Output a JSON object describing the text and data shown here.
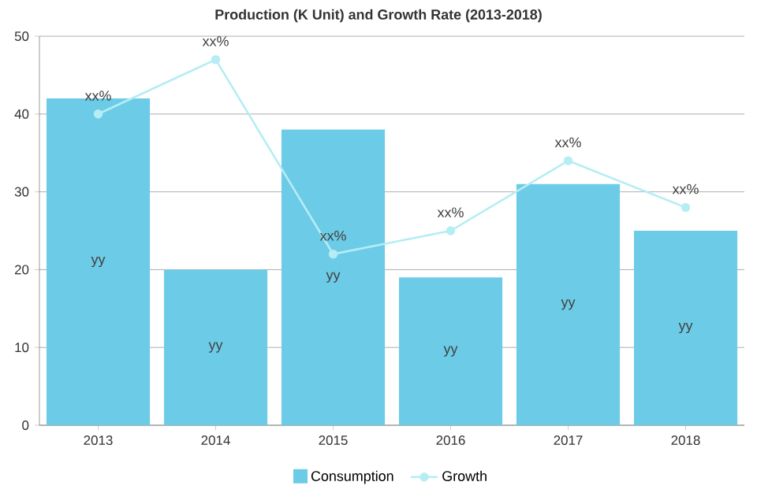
{
  "chart_data": {
    "type": "bar",
    "title": "Production (K Unit) and Growth Rate (2013-2018)",
    "categories": [
      "2013",
      "2014",
      "2015",
      "2016",
      "2017",
      "2018"
    ],
    "series": [
      {
        "name": "Consumption",
        "color": "#6ccbe6",
        "values": [
          42,
          20,
          38,
          19,
          31,
          25
        ],
        "value_labels": [
          "yy",
          "yy",
          "yy",
          "yy",
          "yy",
          "yy"
        ]
      },
      {
        "name": "Growth",
        "type": "line",
        "color": "#b5edf5",
        "marker": "circle",
        "values": [
          40,
          47,
          22,
          25,
          34,
          28
        ],
        "value_labels": [
          "xx%",
          "xx%",
          "xx%",
          "xx%",
          "xx%",
          "xx%"
        ]
      }
    ],
    "ylim": [
      0,
      50
    ],
    "yticks": [
      0,
      10,
      20,
      30,
      40,
      50
    ],
    "grid": "y",
    "legend": "bottom"
  }
}
